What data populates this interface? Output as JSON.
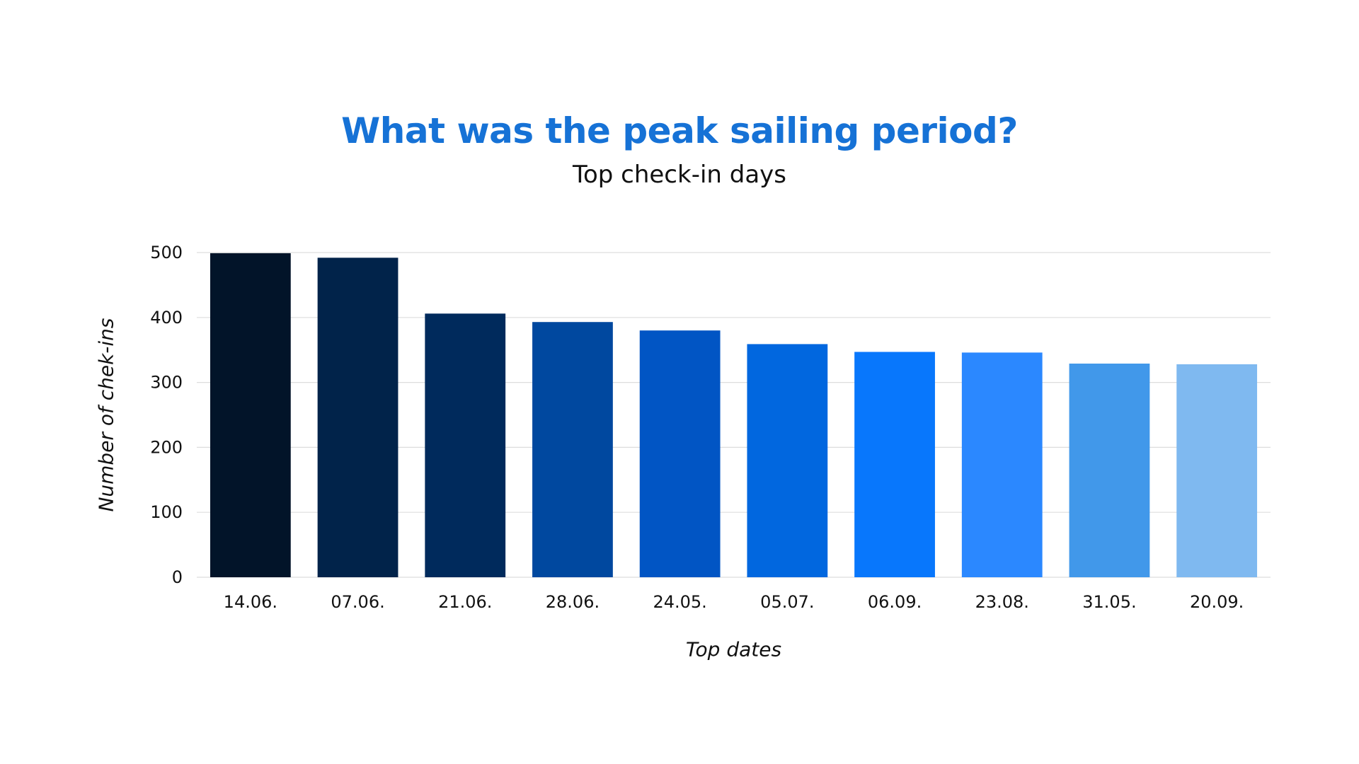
{
  "chart_data": {
    "type": "bar",
    "title": "What was the peak sailing period?",
    "subtitle": "Top check-in days",
    "xlabel": "Top dates",
    "ylabel": "Number of chek-ins",
    "categories": [
      "14.06.",
      "07.06.",
      "21.06.",
      "28.06.",
      "24.05.",
      "05.07.",
      "06.09.",
      "23.08.",
      "31.05.",
      "20.09."
    ],
    "values": [
      499,
      492,
      406,
      393,
      380,
      359,
      347,
      346,
      329,
      328
    ],
    "ylim": [
      0,
      500
    ],
    "yticks": [
      0,
      100,
      200,
      300,
      400,
      500
    ],
    "grid": true,
    "bar_colors": [
      "#021429",
      "#01234a",
      "#002a5c",
      "#00489f",
      "#0155c4",
      "#0167df",
      "#0877fc",
      "#2b88ff",
      "#4198ea",
      "#7fb9f0"
    ],
    "colors": {
      "title": "#1672d6",
      "grid": "#dddddd",
      "text": "#111111"
    }
  }
}
